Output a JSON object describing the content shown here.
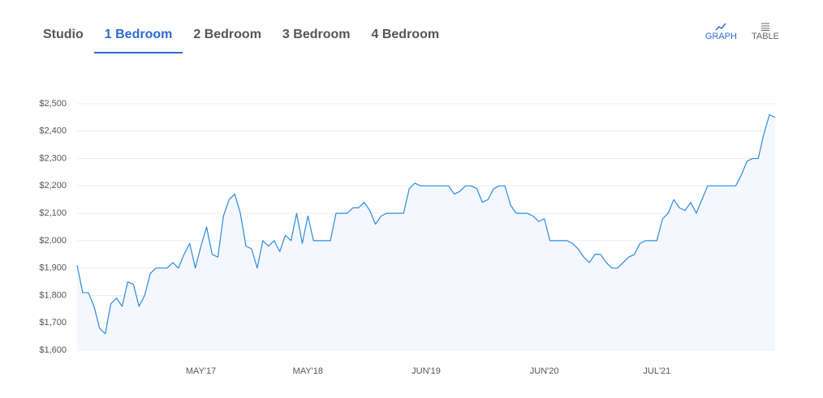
{
  "tabs": [
    "Studio",
    "1 Bedroom",
    "2 Bedroom",
    "3 Bedroom",
    "4 Bedroom"
  ],
  "active_tab": 1,
  "views": [
    "GRAPH",
    "TABLE"
  ],
  "active_view": 0,
  "chart_data": {
    "type": "line",
    "categories": [
      null,
      null,
      null,
      null,
      null,
      null,
      null,
      null,
      null,
      null,
      null,
      null,
      null,
      null,
      null,
      null,
      null,
      null,
      null,
      null,
      null,
      null,
      "MAY'17",
      null,
      null,
      null,
      null,
      null,
      null,
      null,
      null,
      null,
      null,
      null,
      null,
      null,
      null,
      null,
      null,
      null,
      null,
      "MAY'18",
      null,
      null,
      null,
      null,
      null,
      null,
      null,
      null,
      null,
      null,
      null,
      null,
      null,
      null,
      null,
      null,
      null,
      null,
      null,
      null,
      "JUN'19",
      null,
      null,
      null,
      null,
      null,
      null,
      null,
      null,
      null,
      null,
      null,
      null,
      null,
      null,
      null,
      null,
      null,
      null,
      null,
      null,
      "JUN'20",
      null,
      null,
      null,
      null,
      null,
      null,
      null,
      null,
      null,
      null,
      null,
      null,
      null,
      null,
      null,
      null,
      null,
      null,
      null,
      "JUL'21",
      null,
      null,
      null,
      null,
      null,
      null,
      null,
      null,
      null,
      null,
      null,
      null,
      null,
      null,
      null,
      null,
      null,
      null,
      null,
      null,
      null
    ],
    "values": [
      1910,
      1810,
      1810,
      1760,
      1680,
      1660,
      1770,
      1790,
      1760,
      1850,
      1840,
      1760,
      1800,
      1880,
      1900,
      1900,
      1900,
      1920,
      1900,
      1950,
      1990,
      1900,
      1980,
      2050,
      1950,
      1940,
      2090,
      2150,
      2170,
      2100,
      1980,
      1970,
      1900,
      2000,
      1980,
      2000,
      1960,
      2020,
      2000,
      2100,
      1990,
      2090,
      2000,
      2000,
      2000,
      2000,
      2100,
      2100,
      2100,
      2120,
      2120,
      2140,
      2110,
      2060,
      2090,
      2100,
      2100,
      2100,
      2100,
      2190,
      2210,
      2200,
      2200,
      2200,
      2200,
      2200,
      2200,
      2170,
      2180,
      2200,
      2200,
      2190,
      2140,
      2150,
      2190,
      2200,
      2200,
      2130,
      2100,
      2100,
      2100,
      2090,
      2070,
      2080,
      2000,
      2000,
      2000,
      2000,
      1990,
      1970,
      1940,
      1920,
      1950,
      1950,
      1920,
      1900,
      1900,
      1920,
      1940,
      1950,
      1990,
      2000,
      2000,
      2000,
      2080,
      2100,
      2150,
      2120,
      2110,
      2140,
      2100,
      2150,
      2200,
      2200,
      2200,
      2200,
      2200,
      2200,
      2240,
      2290,
      2300,
      2300,
      2390,
      2460,
      2450
    ],
    "color": "#2b8be0",
    "area_color": "#f4f8fe",
    "ylim": [
      1600,
      2500
    ],
    "yticks": [
      {
        "value": 1600,
        "label": "$1,600"
      },
      {
        "value": 1700,
        "label": "$1,700"
      },
      {
        "value": 1800,
        "label": "$1,800"
      },
      {
        "value": 1900,
        "label": "$1,900"
      },
      {
        "value": 2000,
        "label": "$2,000"
      },
      {
        "value": 2100,
        "label": "$2,100"
      },
      {
        "value": 2200,
        "label": "$2,200"
      },
      {
        "value": 2300,
        "label": "$2,300"
      },
      {
        "value": 2400,
        "label": "$2,400"
      },
      {
        "value": 2500,
        "label": "$2,500"
      }
    ],
    "grid": true
  }
}
